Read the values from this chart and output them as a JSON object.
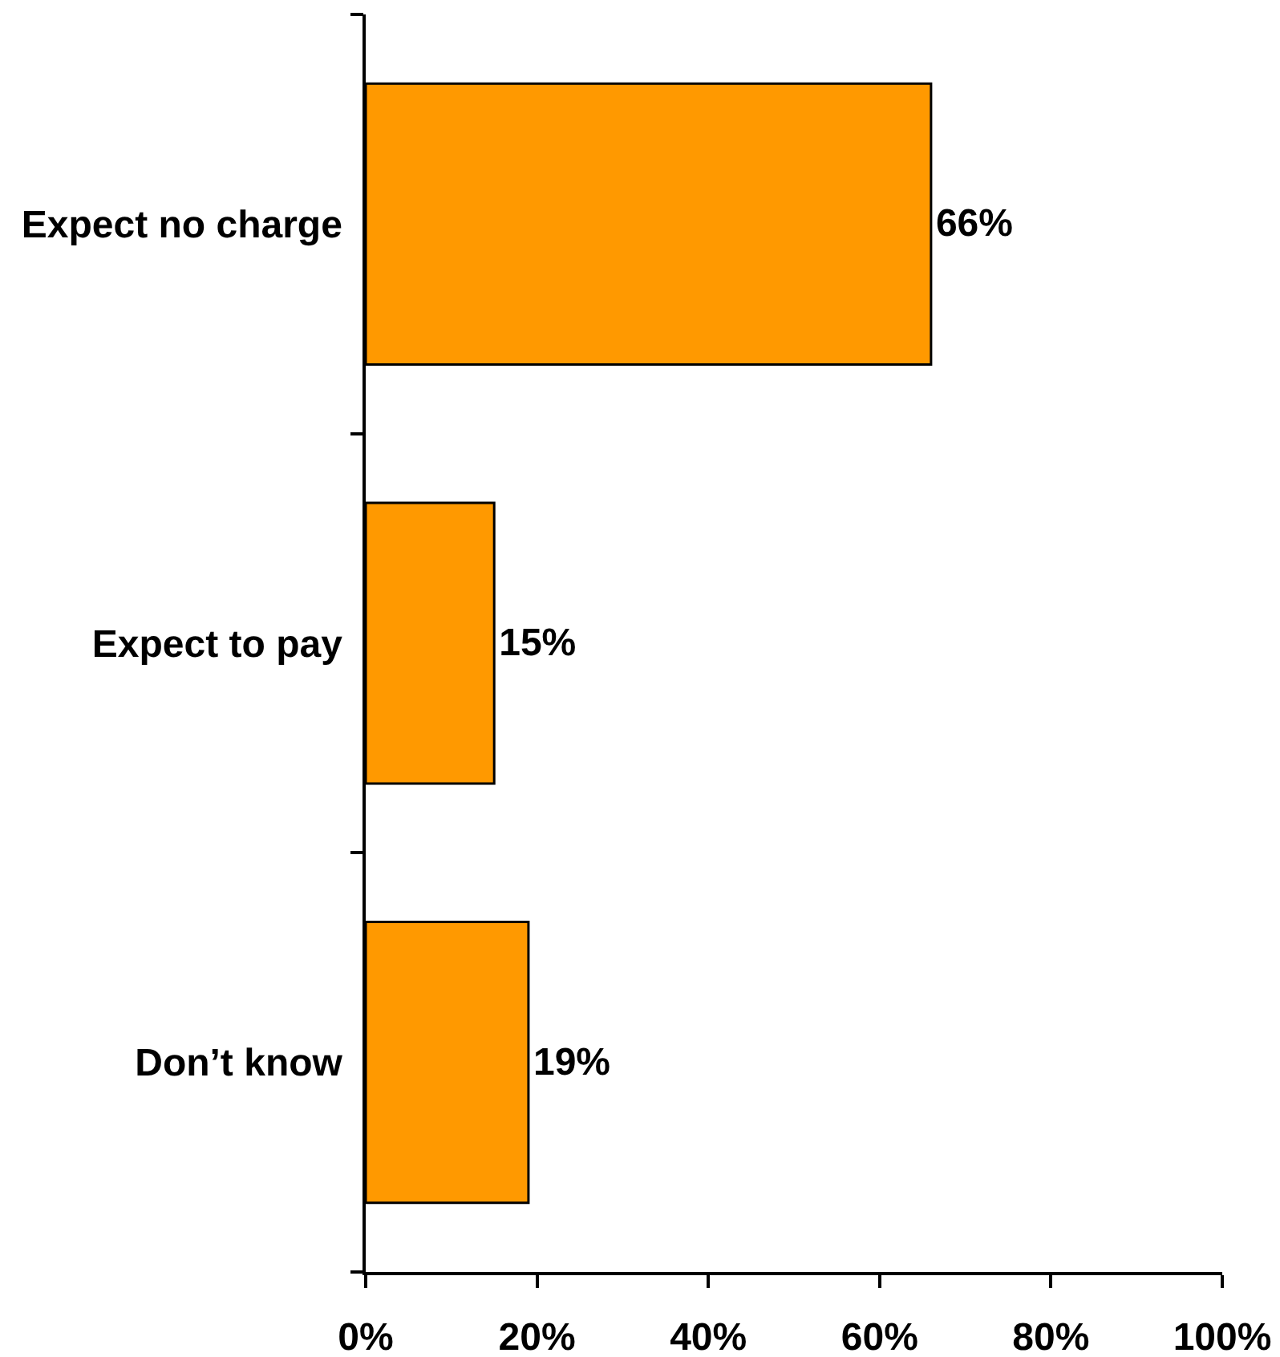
{
  "chart_data": {
    "type": "bar",
    "orientation": "horizontal",
    "categories": [
      "Expect no charge",
      "Expect to pay",
      "Don’t know"
    ],
    "values": [
      66,
      15,
      19
    ],
    "color": "#ff9900",
    "value_labels": [
      "66%",
      "15%",
      "19%"
    ],
    "xlim": [
      0,
      100
    ],
    "xticks": [
      {
        "value": 0,
        "label": "0%"
      },
      {
        "value": 20,
        "label": "20%"
      },
      {
        "value": 40,
        "label": "40%"
      },
      {
        "value": 60,
        "label": "60%"
      },
      {
        "value": 80,
        "label": "80%"
      },
      {
        "value": 100,
        "label": "100%"
      }
    ]
  }
}
